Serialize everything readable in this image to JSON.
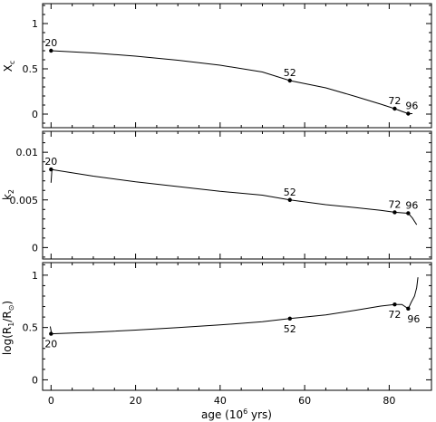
{
  "chart_data": [
    {
      "type": "line",
      "ylabel": "X",
      "ylabel_sub": "c",
      "ylim": [
        -0.15,
        1.22
      ],
      "yticks": [
        0,
        0.5,
        1
      ],
      "ytick_labels": [
        "0",
        "0.5",
        "1"
      ],
      "xlim": [
        -2,
        90
      ],
      "xticks": [
        0,
        20,
        40,
        60,
        80
      ],
      "xtick_labels": [],
      "series": [
        {
          "x": [
            0,
            10,
            20,
            30,
            40,
            50,
            56.5,
            65,
            72,
            78,
            81.3,
            83,
            84.5,
            85.5
          ],
          "y": [
            0.7,
            0.675,
            0.64,
            0.595,
            0.54,
            0.465,
            0.37,
            0.29,
            0.195,
            0.11,
            0.06,
            0.03,
            0.005,
            0.005
          ]
        }
      ],
      "marked_points": [
        {
          "x": 0,
          "y": 0.7,
          "label": "20",
          "anchor": "above"
        },
        {
          "x": 56.5,
          "y": 0.37,
          "label": "52",
          "anchor": "above"
        },
        {
          "x": 81.3,
          "y": 0.06,
          "label": "72",
          "anchor": "above"
        },
        {
          "x": 84.5,
          "y": 0.005,
          "label": "96",
          "anchor": "upright"
        }
      ]
    },
    {
      "type": "line",
      "ylabel": "k",
      "ylabel_sub": "2",
      "ylim": [
        -0.0012,
        0.0122
      ],
      "yticks": [
        0,
        0.005,
        0.01
      ],
      "ytick_labels": [
        "0",
        "0.005",
        "0.01"
      ],
      "xlim": [
        -2,
        90
      ],
      "xticks": [
        0,
        20,
        40,
        60,
        80
      ],
      "xtick_labels": [],
      "series": [
        {
          "x": [
            0,
            10,
            20,
            30,
            40,
            50,
            56.5,
            65,
            72,
            78,
            81.3,
            83,
            84.5,
            85.5,
            86.5
          ],
          "y": [
            0.0082,
            0.0075,
            0.0069,
            0.0064,
            0.0059,
            0.0055,
            0.005,
            0.0045,
            0.0042,
            0.0039,
            0.0037,
            0.00365,
            0.0036,
            0.0031,
            0.0024
          ]
        },
        {
          "x": [
            0,
            0.1,
            0.2
          ],
          "y": [
            0.0068,
            0.0075,
            0.0082
          ]
        }
      ],
      "marked_points": [
        {
          "x": 0,
          "y": 0.0082,
          "label": "20",
          "anchor": "above"
        },
        {
          "x": 56.5,
          "y": 0.005,
          "label": "52",
          "anchor": "above"
        },
        {
          "x": 81.3,
          "y": 0.0037,
          "label": "72",
          "anchor": "above"
        },
        {
          "x": 84.5,
          "y": 0.0036,
          "label": "96",
          "anchor": "upright"
        }
      ]
    },
    {
      "type": "line",
      "ylabel": "log(R",
      "ylabel_sub": "1",
      "ylabel_tail": "/R",
      "ylabel_sub2": "⊙",
      "ylabel_end": ")",
      "ylim": [
        -0.1,
        1.12
      ],
      "yticks": [
        0,
        0.5,
        1
      ],
      "ytick_labels": [
        "0",
        "0.5",
        "1"
      ],
      "xlim": [
        -2,
        90
      ],
      "xticks": [
        0,
        20,
        40,
        60,
        80
      ],
      "xtick_labels": [
        "0",
        "20",
        "40",
        "60",
        "80"
      ],
      "xlabel": "age (10",
      "xlabel_sup": "6",
      "xlabel_tail": " yrs)",
      "series": [
        {
          "x": [
            0,
            10,
            20,
            30,
            40,
            50,
            56.5,
            65,
            72,
            78,
            81.3,
            83,
            84.5,
            85.2,
            86,
            86.5,
            86.8
          ],
          "y": [
            0.44,
            0.455,
            0.475,
            0.5,
            0.525,
            0.555,
            0.585,
            0.62,
            0.665,
            0.705,
            0.72,
            0.72,
            0.68,
            0.74,
            0.8,
            0.88,
            0.98
          ]
        },
        {
          "x": [
            -0.2,
            0,
            0.1
          ],
          "y": [
            0.51,
            0.47,
            0.44
          ]
        }
      ],
      "marked_points": [
        {
          "x": 0,
          "y": 0.44,
          "label": "20",
          "anchor": "below"
        },
        {
          "x": 56.5,
          "y": 0.585,
          "label": "52",
          "anchor": "below"
        },
        {
          "x": 81.3,
          "y": 0.72,
          "label": "72",
          "anchor": "below"
        },
        {
          "x": 84.5,
          "y": 0.68,
          "label": "96",
          "anchor": "belowright"
        }
      ]
    }
  ]
}
